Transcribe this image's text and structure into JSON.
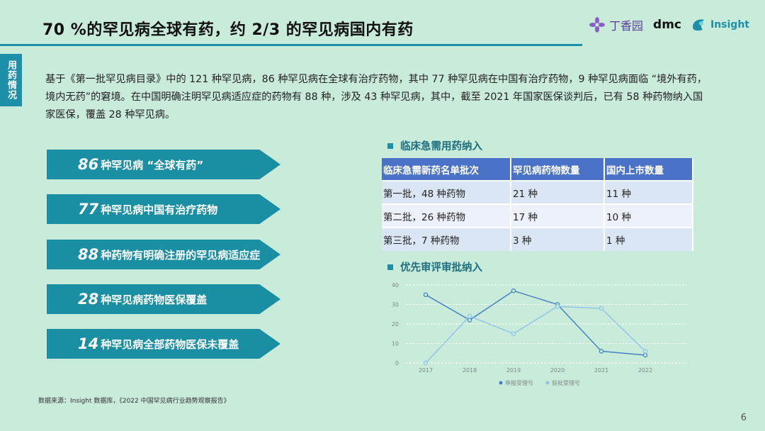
{
  "header": {
    "title": "70 %的罕见病全球有药，约 2/3 的罕见病国内有药",
    "logos": {
      "dxy": "丁香园",
      "dmc": "dmc",
      "insight": "Insight"
    }
  },
  "side_tab": "用药情况",
  "intro": "基于《第一批罕见病目录》中的 121 种罕见病，86 种罕见病在全球有治疗药物，其中 77 种罕见病在中国有治疗药物，9 种罕见病面临 “境外有药，境内无药”的窘境。在中国明确注明罕见病适应症的药物有 88 种，涉及 43 种罕见病，其中，截至 2021 年国家医保谈判后，已有 58 种药物纳入国家医保，覆盖 28 种罕见病。",
  "highlights": [
    {
      "num": "86",
      "text": "种罕见病 “全球有药”"
    },
    {
      "num": "77",
      "text": "种罕见病中国有治疗药物"
    },
    {
      "num": "88",
      "text": "种药物有明确注册的罕见病适应症"
    },
    {
      "num": "28",
      "text": "种罕见病药物医保覆盖"
    },
    {
      "num": "14",
      "text": "种罕见病全部药物医保未覆盖"
    }
  ],
  "section1": {
    "title": "临床急需用药纳入"
  },
  "table": {
    "headers": [
      "临床急需新药名单批次",
      "罕见病药物数量",
      "国内上市数量"
    ],
    "rows": [
      [
        "第一批，48 种药物",
        "21 种",
        "11 种"
      ],
      [
        "第二批，26 种药物",
        "17 种",
        "10 种"
      ],
      [
        "第三批，7 种药物",
        "3 种",
        "1 种"
      ]
    ]
  },
  "section2": {
    "title": "优先审评审批纳入"
  },
  "chart_data": {
    "type": "line",
    "x": [
      "2017",
      "2018",
      "2019",
      "2020",
      "2021",
      "2022"
    ],
    "yticks": [
      "0",
      "10",
      "20",
      "30",
      "40"
    ],
    "ylim": [
      0,
      40
    ],
    "series": [
      {
        "name": "申报受理号",
        "color": "#3f7fc2",
        "values": [
          35,
          22,
          37,
          30,
          6,
          4
        ]
      },
      {
        "name": "获批受理号",
        "color": "#8fc3ea",
        "values": [
          0,
          24,
          15,
          29,
          28,
          6
        ]
      }
    ]
  },
  "footer": {
    "source": "数据来源：Insight 数据库，《2022 中国罕见病行业趋势观察报告》",
    "page": "6"
  }
}
